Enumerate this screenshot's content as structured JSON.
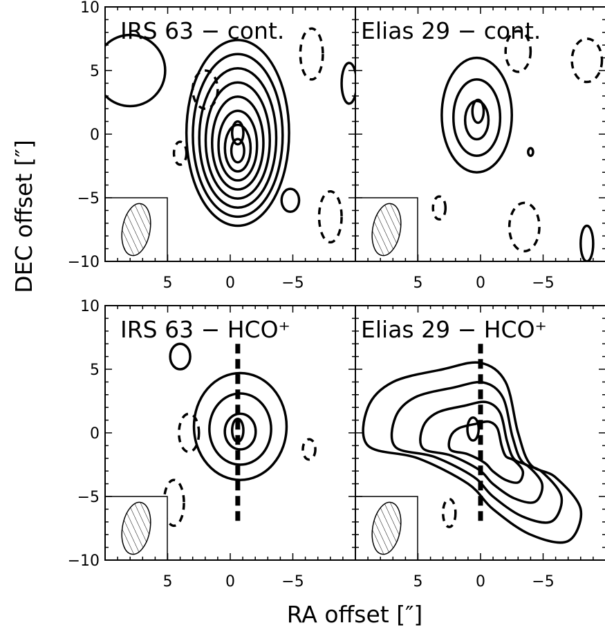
{
  "figure": {
    "xlabel": "RA offset [″]",
    "ylabel": "DEC offset [″]"
  },
  "chart_data": [
    {
      "type": "contour",
      "title": "IRS 63 − cont.",
      "xlim": [
        10,
        -10
      ],
      "ylim": [
        -10,
        10
      ],
      "xticks": [
        5,
        0,
        -5
      ],
      "xticklabels": [
        "5",
        "0",
        "−5"
      ],
      "yticks": [
        10,
        5,
        0,
        -5,
        -10
      ],
      "yticklabels": [
        "10",
        "5",
        "0",
        "−5",
        "−10"
      ],
      "beam_inset": true,
      "peak": [
        -0.6,
        0.1
      ],
      "positive_contours": [
        {
          "center": [
            -0.6,
            0.1
          ],
          "levels": 8,
          "max_semi_axes": [
            4.1,
            7.3
          ]
        },
        {
          "center": [
            8.0,
            5.0
          ],
          "semi_axes": [
            2.8,
            2.8
          ]
        },
        {
          "center": [
            -4.8,
            -5.2
          ],
          "semi_axes": [
            0.7,
            0.9
          ]
        },
        {
          "center": [
            -9.5,
            4.0
          ],
          "semi_axes": [
            0.6,
            1.6
          ]
        }
      ],
      "negative_contours": [
        {
          "center": [
            2.0,
            3.5
          ],
          "semi_axes": [
            1.0,
            1.5
          ]
        },
        {
          "center": [
            4.0,
            -1.5
          ],
          "semi_axes": [
            0.5,
            0.9
          ]
        },
        {
          "center": [
            -6.5,
            6.3
          ],
          "semi_axes": [
            0.9,
            2.0
          ]
        },
        {
          "center": [
            -8.0,
            -6.5
          ],
          "semi_axes": [
            0.9,
            2.0
          ]
        }
      ]
    },
    {
      "type": "contour",
      "title": "Elias 29 − cont.",
      "xlim": [
        10,
        -10
      ],
      "ylim": [
        -10,
        10
      ],
      "xticks": [
        5,
        0,
        -5
      ],
      "xticklabels": [
        "5",
        "0",
        "−5"
      ],
      "yticks": [
        10,
        5,
        0,
        -5,
        -10
      ],
      "yticklabels": [],
      "beam_inset": true,
      "peak": [
        0.2,
        1.8
      ],
      "positive_contours": [
        {
          "center": [
            0.3,
            1.5
          ],
          "levels": 3,
          "max_semi_axes": [
            2.8,
            4.5
          ]
        },
        {
          "center": [
            -4.0,
            -1.4
          ],
          "semi_axes": [
            0.2,
            0.3
          ]
        },
        {
          "center": [
            -8.5,
            -8.6
          ],
          "semi_axes": [
            0.5,
            1.4
          ]
        }
      ],
      "negative_contours": [
        {
          "center": [
            -3.0,
            6.5
          ],
          "semi_axes": [
            1.0,
            1.6
          ]
        },
        {
          "center": [
            -8.5,
            5.8
          ],
          "semi_axes": [
            1.2,
            1.7
          ]
        },
        {
          "center": [
            3.3,
            -5.8
          ],
          "semi_axes": [
            0.5,
            0.9
          ]
        },
        {
          "center": [
            -3.5,
            -7.3
          ],
          "semi_axes": [
            1.2,
            1.9
          ]
        }
      ]
    },
    {
      "type": "contour",
      "title": "IRS 63 − HCO⁺",
      "xlim": [
        10,
        -10
      ],
      "ylim": [
        -10,
        10
      ],
      "xticks": [
        5,
        0,
        -5
      ],
      "xticklabels": [
        "5",
        "0",
        "−5"
      ],
      "yticks": [
        10,
        5,
        0,
        -5,
        -10
      ],
      "yticklabels": [
        "10",
        "5",
        "0",
        "−5",
        "−10"
      ],
      "beam_inset": true,
      "peak": [
        -0.6,
        0.2
      ],
      "cut_line": {
        "x": -0.6,
        "y_range": [
          -7,
          7
        ]
      },
      "positive_contours": [
        {
          "center": [
            -0.8,
            0.5
          ],
          "levels": 3,
          "max_semi_axes": [
            3.7,
            4.2
          ]
        },
        {
          "center": [
            4.0,
            6.0
          ],
          "semi_axes": [
            0.8,
            1.0
          ]
        }
      ],
      "negative_contours": [
        {
          "center": [
            3.3,
            0.0
          ],
          "semi_axes": [
            0.8,
            1.5
          ]
        },
        {
          "center": [
            -6.3,
            -1.3
          ],
          "semi_axes": [
            0.5,
            0.8
          ]
        },
        {
          "center": [
            4.5,
            -5.5
          ],
          "semi_axes": [
            0.8,
            1.8
          ]
        }
      ]
    },
    {
      "type": "contour",
      "title": "Elias 29 − HCO⁺",
      "xlim": [
        10,
        -10
      ],
      "ylim": [
        -10,
        10
      ],
      "xticks": [
        5,
        0,
        -5
      ],
      "xticklabels": [
        "5",
        "0",
        "−5"
      ],
      "yticks": [
        10,
        5,
        0,
        -5,
        -10
      ],
      "yticklabels": [],
      "beam_inset": true,
      "peak": [
        0.6,
        0.3
      ],
      "cut_line": {
        "x": 0.0,
        "y_range": [
          -7,
          7
        ]
      },
      "positive_contours": [
        {
          "center": [
            -1.0,
            -1.5
          ],
          "levels": 4,
          "extended": "northeast-southwest"
        }
      ],
      "negative_contours": [
        {
          "center": [
            2.5,
            -6.3
          ],
          "semi_axes": [
            0.5,
            1.1
          ]
        }
      ]
    }
  ]
}
